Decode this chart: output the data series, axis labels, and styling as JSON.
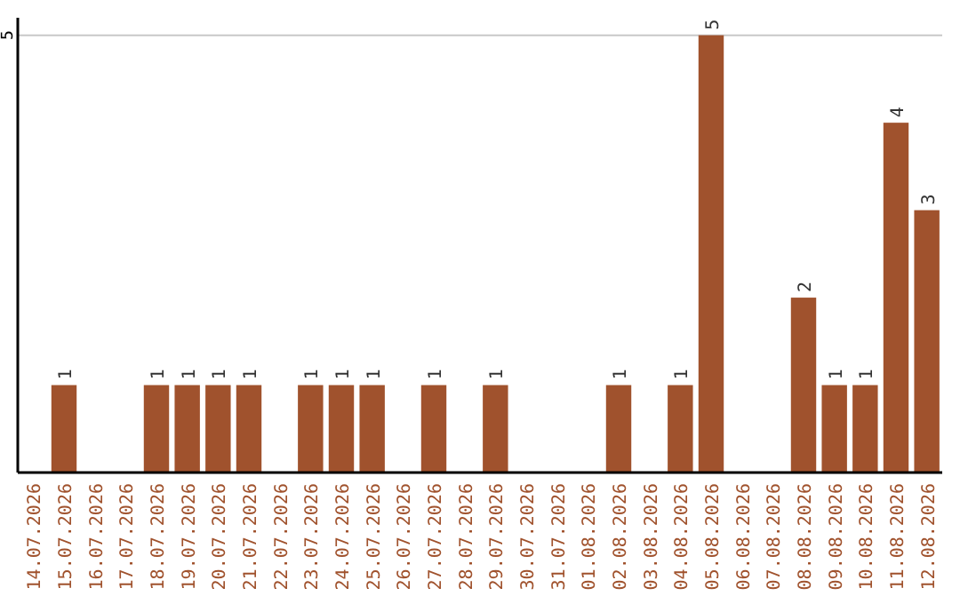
{
  "chart_data": {
    "type": "bar",
    "categories": [
      "14.07.2026",
      "15.07.2026",
      "16.07.2026",
      "17.07.2026",
      "18.07.2026",
      "19.07.2026",
      "20.07.2026",
      "21.07.2026",
      "22.07.2026",
      "23.07.2026",
      "24.07.2026",
      "25.07.2026",
      "26.07.2026",
      "27.07.2026",
      "28.07.2026",
      "29.07.2026",
      "30.07.2026",
      "31.07.2026",
      "01.08.2026",
      "02.08.2026",
      "03.08.2026",
      "04.08.2026",
      "05.08.2026",
      "06.08.2026",
      "07.08.2026",
      "08.08.2026",
      "09.08.2026",
      "10.08.2026",
      "11.08.2026",
      "12.08.2026"
    ],
    "values": [
      null,
      1,
      null,
      null,
      1,
      1,
      1,
      1,
      null,
      1,
      1,
      1,
      null,
      1,
      null,
      1,
      null,
      null,
      null,
      1,
      null,
      1,
      5,
      null,
      null,
      2,
      1,
      1,
      4,
      3
    ],
    "color": "#a0522d",
    "ylim": [
      0,
      5.2
    ],
    "yticks": [
      5
    ],
    "grid": "y",
    "data_labels": true
  }
}
